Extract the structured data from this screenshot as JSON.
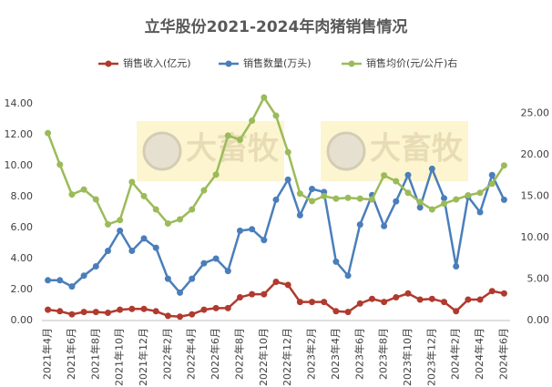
{
  "chart_data": {
    "type": "line",
    "title": "立华股份2021-2024年肉猪销售情况",
    "watermark": "大畜牧",
    "categories": [
      "2021年4月",
      null,
      "2021年6月",
      null,
      "2021年8月",
      null,
      "2021年10月",
      null,
      "2021年12月",
      null,
      "2022年2月",
      null,
      "2022年4月",
      null,
      "2022年6月",
      null,
      "2022年8月",
      null,
      "2022年10月",
      null,
      "2022年12月",
      null,
      "2023年2月",
      null,
      "2023年4月",
      null,
      "2023年6月",
      null,
      "2023年8月",
      null,
      "2023年10月",
      null,
      "2023年12月",
      null,
      "2024年2月",
      null,
      "2024年4月",
      null,
      "2024年6月"
    ],
    "series": [
      {
        "name": "销售收入(亿元)",
        "color": "#b03a2e",
        "values": [
          0.7,
          0.6,
          0.4,
          0.55,
          0.55,
          0.5,
          0.7,
          0.75,
          0.75,
          0.6,
          0.3,
          0.25,
          0.4,
          0.7,
          0.8,
          0.8,
          1.5,
          1.7,
          1.7,
          2.5,
          2.3,
          1.2,
          1.2,
          1.2,
          0.6,
          0.55,
          1.1,
          1.4,
          1.2,
          1.5,
          1.75,
          1.35,
          1.4,
          1.2,
          0.6,
          1.35,
          1.35,
          1.9,
          1.75
        ]
      },
      {
        "name": "销售数量(万头)",
        "color": "#4a7ebb",
        "values": [
          2.6,
          2.6,
          2.2,
          2.9,
          3.5,
          4.5,
          5.8,
          4.5,
          5.3,
          4.7,
          2.7,
          1.8,
          2.7,
          3.7,
          4.0,
          3.2,
          5.8,
          5.9,
          5.2,
          7.8,
          9.1,
          6.8,
          8.5,
          8.3,
          3.8,
          2.9,
          6.2,
          8.1,
          6.1,
          7.7,
          9.4,
          7.3,
          9.8,
          7.9,
          3.5,
          8.0,
          7.0,
          9.4,
          7.8
        ]
      },
      {
        "name": "销售均价(元/公斤)右",
        "color": "#9bbb59",
        "axis": "y2",
        "values": [
          22.6,
          18.8,
          15.2,
          15.8,
          14.6,
          11.6,
          12.1,
          16.7,
          15.0,
          13.4,
          11.7,
          12.2,
          13.4,
          15.7,
          17.6,
          22.3,
          21.8,
          24.1,
          26.9,
          24.7,
          20.3,
          15.3,
          14.4,
          15.0,
          14.7,
          14.8,
          14.7,
          14.6,
          17.5,
          16.8,
          15.4,
          14.3,
          13.4,
          14.1,
          14.6,
          15.1,
          15.4,
          16.5,
          18.7
        ]
      }
    ],
    "ylim": [
      0,
      15
    ],
    "yticks": [
      {
        "value": 0,
        "label": "0.00"
      },
      {
        "value": 2,
        "label": "2.00"
      },
      {
        "value": 4,
        "label": "4.00"
      },
      {
        "value": 6,
        "label": "6.00"
      },
      {
        "value": 8,
        "label": "8.00"
      },
      {
        "value": 10,
        "label": "10.00"
      },
      {
        "value": 12,
        "label": "12.00"
      },
      {
        "value": 14,
        "label": "14.00"
      }
    ],
    "y2lim": [
      0,
      28
    ],
    "y2ticks": [
      {
        "value": 0,
        "label": "0.00"
      },
      {
        "value": 5,
        "label": "5.00"
      },
      {
        "value": 10,
        "label": "10.00"
      },
      {
        "value": 15,
        "label": "15.00"
      },
      {
        "value": 20,
        "label": "20.00"
      },
      {
        "value": 25,
        "label": "25.00"
      }
    ],
    "grid": false
  }
}
